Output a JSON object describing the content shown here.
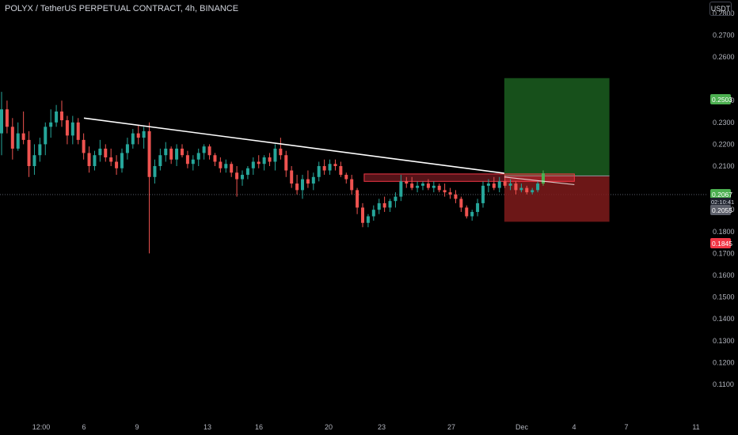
{
  "header": {
    "title": "POLYX / TetherUS PERPETUAL CONTRACT, 4h, BINANCE",
    "currency": "USDT"
  },
  "chart_data": {
    "type": "candlestick",
    "y_ticks": [
      "0.2800",
      "0.2700",
      "0.2600",
      "0.2400",
      "0.2300",
      "0.2200",
      "0.2100",
      "0.1900",
      "0.1800",
      "0.1700",
      "0.1600",
      "0.1500",
      "0.1400",
      "0.1300",
      "0.1200",
      "0.1100"
    ],
    "x_ticks": [
      "12:00",
      "6",
      "9",
      "13",
      "16",
      "20",
      "23",
      "27",
      "Dec",
      "4",
      "7",
      "11"
    ],
    "price_labels": {
      "target": {
        "text": "0.2503",
        "color": "#4caf50"
      },
      "current": {
        "text": "0.2067",
        "color": "#4caf50"
      },
      "countdown": {
        "text": "02:10:41"
      },
      "entry": {
        "text": "0.2055",
        "color": "#5d606b"
      },
      "stop": {
        "text": "0.1845",
        "color": "#f23645"
      }
    },
    "position": {
      "target": 0.2503,
      "entry": 0.2055,
      "stop": 0.1845,
      "start_x": "Nov 30",
      "end_x": "Dec 6",
      "profit_color": "#1b5e20",
      "loss_color": "#7f1b1b"
    },
    "trendline": {
      "x": [
        "Nov 6",
        "Nov 30"
      ],
      "y": [
        0.232,
        0.2067
      ],
      "color": "#ffffff"
    },
    "trendline_extension": {
      "x": [
        "Nov 30",
        "Dec 4"
      ],
      "y": [
        0.205,
        0.2015
      ]
    },
    "resistance_zone": {
      "x": [
        "Nov 22",
        "Dec 4"
      ],
      "y_top": 0.2064,
      "y_bottom": 0.203,
      "color": "#f23645"
    },
    "colors": {
      "up": "#26a69a",
      "down": "#ef5350",
      "up_bright": "#4caf50"
    },
    "candles_note": "approximate OHLC path",
    "candles": [
      [
        0.225,
        0.244,
        0.215,
        0.236
      ],
      [
        0.236,
        0.24,
        0.225,
        0.228
      ],
      [
        0.228,
        0.232,
        0.213,
        0.218
      ],
      [
        0.218,
        0.23,
        0.217,
        0.225
      ],
      [
        0.225,
        0.235,
        0.22,
        0.222
      ],
      [
        0.222,
        0.226,
        0.205,
        0.21
      ],
      [
        0.21,
        0.22,
        0.206,
        0.215
      ],
      [
        0.215,
        0.223,
        0.212,
        0.22
      ],
      [
        0.22,
        0.23,
        0.215,
        0.228
      ],
      [
        0.228,
        0.236,
        0.223,
        0.23
      ],
      [
        0.23,
        0.238,
        0.228,
        0.235
      ],
      [
        0.235,
        0.24,
        0.228,
        0.231
      ],
      [
        0.231,
        0.233,
        0.22,
        0.224
      ],
      [
        0.224,
        0.233,
        0.22,
        0.23
      ],
      [
        0.23,
        0.232,
        0.22,
        0.222
      ],
      [
        0.222,
        0.225,
        0.213,
        0.216
      ],
      [
        0.216,
        0.219,
        0.207,
        0.21
      ],
      [
        0.21,
        0.217,
        0.208,
        0.215
      ],
      [
        0.215,
        0.222,
        0.212,
        0.218
      ],
      [
        0.218,
        0.22,
        0.212,
        0.214
      ],
      [
        0.214,
        0.218,
        0.21,
        0.212
      ],
      [
        0.212,
        0.215,
        0.206,
        0.209
      ],
      [
        0.209,
        0.218,
        0.207,
        0.216
      ],
      [
        0.216,
        0.223,
        0.213,
        0.22
      ],
      [
        0.22,
        0.227,
        0.218,
        0.225
      ],
      [
        0.225,
        0.229,
        0.22,
        0.223
      ],
      [
        0.223,
        0.228,
        0.218,
        0.226
      ],
      [
        0.226,
        0.23,
        0.17,
        0.205
      ],
      [
        0.205,
        0.213,
        0.202,
        0.21
      ],
      [
        0.21,
        0.218,
        0.208,
        0.215
      ],
      [
        0.215,
        0.221,
        0.212,
        0.218
      ],
      [
        0.218,
        0.219,
        0.211,
        0.213
      ],
      [
        0.213,
        0.22,
        0.21,
        0.218
      ],
      [
        0.218,
        0.22,
        0.214,
        0.215
      ],
      [
        0.215,
        0.217,
        0.209,
        0.211
      ],
      [
        0.211,
        0.215,
        0.208,
        0.213
      ],
      [
        0.213,
        0.218,
        0.21,
        0.216
      ],
      [
        0.216,
        0.22,
        0.213,
        0.219
      ],
      [
        0.219,
        0.22,
        0.213,
        0.215
      ],
      [
        0.215,
        0.216,
        0.21,
        0.212
      ],
      [
        0.212,
        0.214,
        0.207,
        0.209
      ],
      [
        0.209,
        0.213,
        0.207,
        0.211
      ],
      [
        0.211,
        0.212,
        0.205,
        0.207
      ],
      [
        0.207,
        0.21,
        0.196,
        0.204
      ],
      [
        0.204,
        0.208,
        0.201,
        0.206
      ],
      [
        0.206,
        0.21,
        0.204,
        0.209
      ],
      [
        0.209,
        0.214,
        0.206,
        0.212
      ],
      [
        0.212,
        0.215,
        0.209,
        0.211
      ],
      [
        0.211,
        0.215,
        0.208,
        0.214
      ],
      [
        0.214,
        0.216,
        0.21,
        0.212
      ],
      [
        0.212,
        0.22,
        0.208,
        0.218
      ],
      [
        0.218,
        0.223,
        0.213,
        0.215
      ],
      [
        0.215,
        0.217,
        0.205,
        0.208
      ],
      [
        0.208,
        0.21,
        0.2,
        0.202
      ],
      [
        0.202,
        0.206,
        0.197,
        0.199
      ],
      [
        0.199,
        0.206,
        0.195,
        0.204
      ],
      [
        0.204,
        0.208,
        0.2,
        0.202
      ],
      [
        0.202,
        0.207,
        0.199,
        0.205
      ],
      [
        0.205,
        0.212,
        0.203,
        0.21
      ],
      [
        0.21,
        0.213,
        0.206,
        0.208
      ],
      [
        0.208,
        0.213,
        0.206,
        0.211
      ],
      [
        0.211,
        0.213,
        0.208,
        0.21
      ],
      [
        0.21,
        0.212,
        0.205,
        0.206
      ],
      [
        0.206,
        0.207,
        0.202,
        0.204
      ],
      [
        0.204,
        0.206,
        0.197,
        0.199
      ],
      [
        0.199,
        0.2,
        0.188,
        0.191
      ],
      [
        0.191,
        0.193,
        0.182,
        0.184
      ],
      [
        0.184,
        0.188,
        0.182,
        0.187
      ],
      [
        0.187,
        0.192,
        0.185,
        0.19
      ],
      [
        0.19,
        0.195,
        0.188,
        0.193
      ],
      [
        0.193,
        0.196,
        0.189,
        0.191
      ],
      [
        0.191,
        0.195,
        0.189,
        0.194
      ],
      [
        0.194,
        0.198,
        0.191,
        0.196
      ],
      [
        0.196,
        0.206,
        0.194,
        0.203
      ],
      [
        0.203,
        0.205,
        0.2,
        0.202
      ],
      [
        0.202,
        0.205,
        0.199,
        0.2
      ],
      [
        0.2,
        0.203,
        0.198,
        0.201
      ],
      [
        0.201,
        0.203,
        0.199,
        0.202
      ],
      [
        0.202,
        0.204,
        0.199,
        0.2
      ],
      [
        0.2,
        0.203,
        0.198,
        0.201
      ],
      [
        0.201,
        0.202,
        0.198,
        0.199
      ],
      [
        0.199,
        0.202,
        0.196,
        0.198
      ],
      [
        0.198,
        0.2,
        0.195,
        0.197
      ],
      [
        0.197,
        0.199,
        0.193,
        0.195
      ],
      [
        0.195,
        0.196,
        0.189,
        0.191
      ],
      [
        0.191,
        0.192,
        0.186,
        0.187
      ],
      [
        0.187,
        0.19,
        0.185,
        0.189
      ],
      [
        0.189,
        0.195,
        0.187,
        0.193
      ],
      [
        0.193,
        0.203,
        0.191,
        0.201
      ],
      [
        0.201,
        0.204,
        0.198,
        0.202
      ],
      [
        0.202,
        0.205,
        0.199,
        0.2
      ],
      [
        0.2,
        0.205,
        0.198,
        0.203
      ],
      [
        0.203,
        0.206,
        0.2,
        0.201
      ],
      [
        0.201,
        0.204,
        0.199,
        0.202
      ],
      [
        0.202,
        0.203,
        0.197,
        0.199
      ],
      [
        0.199,
        0.202,
        0.198,
        0.2
      ],
      [
        0.2,
        0.201,
        0.197,
        0.198
      ],
      [
        0.198,
        0.2,
        0.197,
        0.199
      ],
      [
        0.199,
        0.203,
        0.198,
        0.202
      ],
      [
        0.202,
        0.208,
        0.201,
        0.2067
      ]
    ]
  }
}
